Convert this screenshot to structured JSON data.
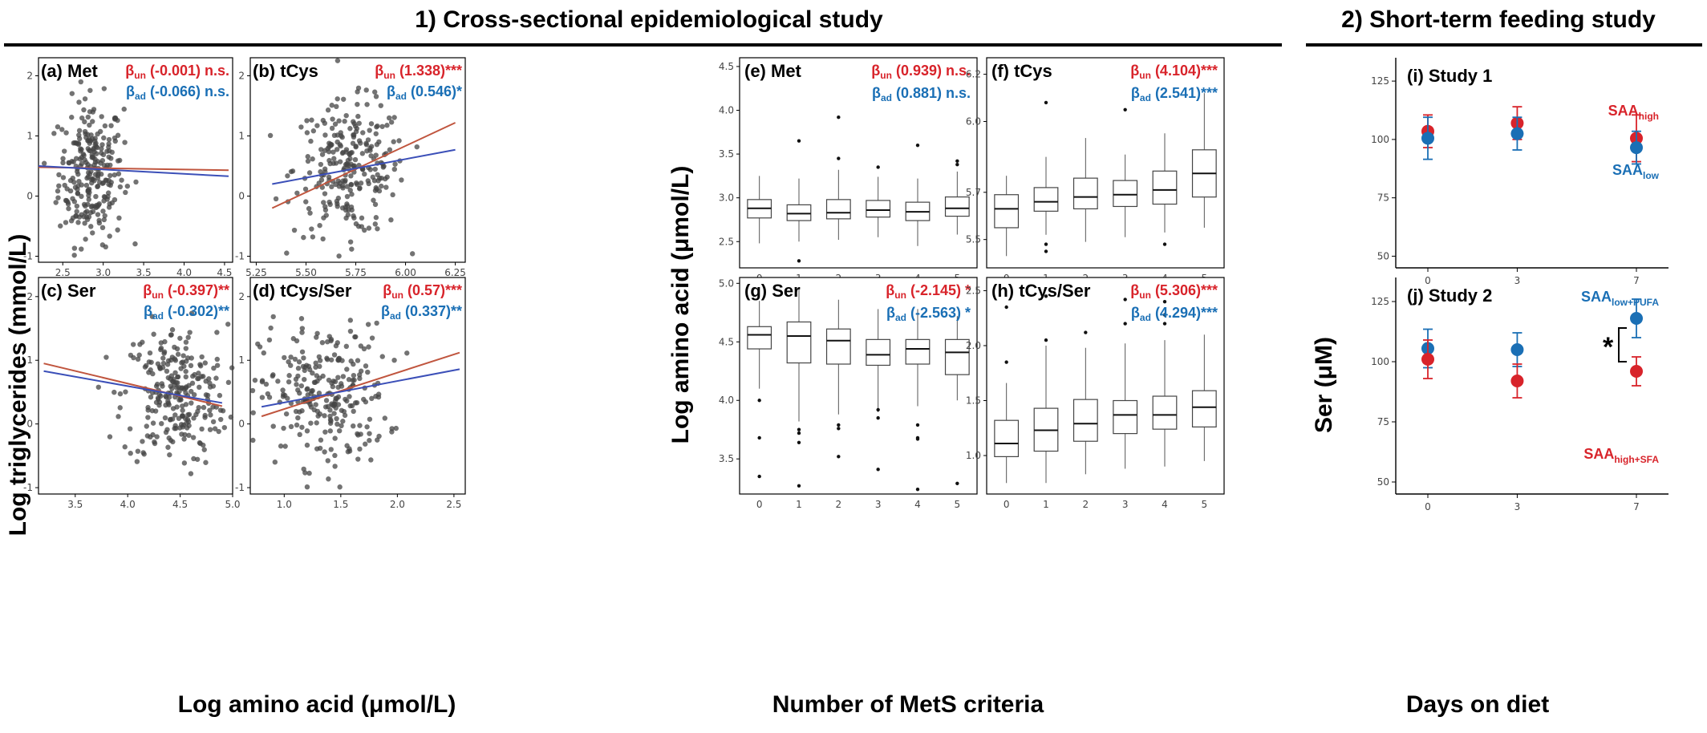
{
  "headers": {
    "cross": "1) Cross-sectional epidemiological study",
    "feeding": "2) Short-term feeding study"
  },
  "axis_titles": {
    "scatter_y": "Log triglycerides (mmol/L)",
    "scatter_x": "Log amino acid (μmol/L)",
    "box_y": "Log amino acid (μmol/L)",
    "box_x": "Number of MetS criteria",
    "feed_y": "Ser (μM)",
    "feed_x": "Days on diet"
  },
  "colors": {
    "red": "#d8232a",
    "blue": "#1a6fb5",
    "point": "#444444",
    "un_line": "#c0553e",
    "ad_line": "#3b4fb8"
  },
  "chart_data": [
    {
      "id": "a",
      "type": "scatter",
      "panel_label": "(a)",
      "title": "Met",
      "xticks": [
        "2.5",
        "3.0",
        "3.5",
        "4.0",
        "4.5"
      ],
      "xlim": [
        2.2,
        4.6
      ],
      "yticks": [
        "-1",
        "0",
        "1",
        "2"
      ],
      "ylim": [
        -1.1,
        2.3
      ],
      "cloud": {
        "cx": 2.85,
        "sx": 0.2,
        "cy": 0.4,
        "sy": 0.6
      },
      "line_un": [
        [
          2.2,
          0.48
        ],
        [
          4.55,
          0.43
        ]
      ],
      "line_ad": [
        [
          2.2,
          0.5
        ],
        [
          4.55,
          0.33
        ]
      ],
      "beta_un_sub": "un",
      "beta_un_val": "(-0.001) n.s.",
      "beta_ad_sub": "ad",
      "beta_ad_val": "(-0.066) n.s."
    },
    {
      "id": "b",
      "type": "scatter",
      "panel_label": "(b)",
      "title": "tCys",
      "xticks": [
        "5.25",
        "5.50",
        "5.75",
        "6.00",
        "6.25"
      ],
      "xlim": [
        5.22,
        6.3
      ],
      "yticks": [
        "-1",
        "0",
        "1",
        "2"
      ],
      "ylim": [
        -1.1,
        2.3
      ],
      "cloud": {
        "cx": 5.72,
        "sx": 0.14,
        "cy": 0.45,
        "sy": 0.55
      },
      "line_un": [
        [
          5.33,
          -0.2
        ],
        [
          6.25,
          1.22
        ]
      ],
      "line_ad": [
        [
          5.33,
          0.2
        ],
        [
          6.25,
          0.77
        ]
      ],
      "beta_un_sub": "un",
      "beta_un_val": "(1.338)***",
      "beta_ad_sub": "ad",
      "beta_ad_val": "(0.546)*"
    },
    {
      "id": "c",
      "type": "scatter",
      "panel_label": "(c)",
      "title": "Ser",
      "xticks": [
        "3.5",
        "4.0",
        "4.5",
        "5.0"
      ],
      "xlim": [
        3.15,
        5.0
      ],
      "yticks": [
        "-1",
        "0",
        "1",
        "2"
      ],
      "ylim": [
        -1.1,
        2.3
      ],
      "cloud": {
        "cx": 4.45,
        "sx": 0.25,
        "cy": 0.45,
        "sy": 0.55
      },
      "line_un": [
        [
          3.2,
          0.95
        ],
        [
          4.9,
          0.28
        ]
      ],
      "line_ad": [
        [
          3.2,
          0.83
        ],
        [
          4.9,
          0.33
        ]
      ],
      "beta_un_sub": "un",
      "beta_un_val": "(-0.397)**",
      "beta_ad_sub": "ad",
      "beta_ad_val": "(-0.302)**"
    },
    {
      "id": "d",
      "type": "scatter",
      "panel_label": "(d)",
      "title": "tCys/Ser",
      "xticks": [
        "1.0",
        "1.5",
        "2.0",
        "2.5"
      ],
      "xlim": [
        0.7,
        2.6
      ],
      "yticks": [
        "-1",
        "0",
        "1",
        "2"
      ],
      "ylim": [
        -1.1,
        2.3
      ],
      "cloud": {
        "cx": 1.35,
        "sx": 0.28,
        "cy": 0.45,
        "sy": 0.55
      },
      "line_un": [
        [
          0.8,
          0.12
        ],
        [
          2.55,
          1.12
        ]
      ],
      "line_ad": [
        [
          0.8,
          0.27
        ],
        [
          2.55,
          0.86
        ]
      ],
      "beta_un_sub": "un",
      "beta_un_val": "(0.57)***",
      "beta_ad_sub": "ad",
      "beta_ad_val": "(0.337)**"
    },
    {
      "id": "e",
      "type": "box",
      "panel_label": "(e)",
      "title": "Met",
      "categories": [
        "0",
        "1",
        "2",
        "3",
        "4",
        "5"
      ],
      "yticks": [
        "2.5",
        "3.0",
        "3.5",
        "4.0",
        "4.5"
      ],
      "ylim": [
        2.2,
        4.6
      ],
      "boxes": [
        {
          "min": 2.48,
          "q1": 2.77,
          "med": 2.88,
          "q3": 2.98,
          "max": 3.25,
          "out": []
        },
        {
          "min": 2.5,
          "q1": 2.74,
          "med": 2.82,
          "q3": 2.92,
          "max": 3.22,
          "out": [
            2.28,
            3.65
          ]
        },
        {
          "min": 2.52,
          "q1": 2.76,
          "med": 2.83,
          "q3": 2.98,
          "max": 3.32,
          "out": [
            3.45,
            3.92
          ]
        },
        {
          "min": 2.55,
          "q1": 2.78,
          "med": 2.86,
          "q3": 2.97,
          "max": 3.24,
          "out": [
            3.35
          ]
        },
        {
          "min": 2.45,
          "q1": 2.74,
          "med": 2.84,
          "q3": 2.95,
          "max": 3.22,
          "out": [
            3.6
          ]
        },
        {
          "min": 2.58,
          "q1": 2.79,
          "med": 2.88,
          "q3": 3.01,
          "max": 3.3,
          "out": [
            3.38,
            3.42
          ]
        }
      ],
      "beta_un_sub": "un",
      "beta_un_val": "(0.939) n.s.",
      "beta_ad_sub": "ad",
      "beta_ad_val": "(0.881) n.s."
    },
    {
      "id": "f",
      "type": "box",
      "panel_label": "(f)",
      "title": "tCys",
      "categories": [
        "0",
        "1",
        "2",
        "3",
        "4",
        "5"
      ],
      "yticks": [
        "5.5",
        "5.7",
        "6.0",
        "6.2"
      ],
      "ylim": [
        5.38,
        6.27
      ],
      "boxes": [
        {
          "min": 5.43,
          "q1": 5.55,
          "med": 5.63,
          "q3": 5.69,
          "max": 5.77,
          "out": []
        },
        {
          "min": 5.52,
          "q1": 5.62,
          "med": 5.66,
          "q3": 5.72,
          "max": 5.85,
          "out": [
            5.45,
            5.48,
            6.08
          ]
        },
        {
          "min": 5.49,
          "q1": 5.63,
          "med": 5.68,
          "q3": 5.76,
          "max": 5.93,
          "out": []
        },
        {
          "min": 5.51,
          "q1": 5.64,
          "med": 5.69,
          "q3": 5.75,
          "max": 5.86,
          "out": [
            6.05
          ]
        },
        {
          "min": 5.53,
          "q1": 5.65,
          "med": 5.71,
          "q3": 5.79,
          "max": 5.95,
          "out": [
            5.48
          ]
        },
        {
          "min": 5.55,
          "q1": 5.68,
          "med": 5.78,
          "q3": 5.88,
          "max": 6.12,
          "out": []
        }
      ],
      "beta_un_sub": "un",
      "beta_un_val": "(4.104)***",
      "beta_ad_sub": "ad",
      "beta_ad_val": "(2.541)***"
    },
    {
      "id": "g",
      "type": "box",
      "panel_label": "(g)",
      "title": "Ser",
      "categories": [
        "0",
        "1",
        "2",
        "3",
        "4",
        "5"
      ],
      "yticks": [
        "3.5",
        "4.0",
        "4.5",
        "5.0"
      ],
      "ylim": [
        3.2,
        5.05
      ],
      "boxes": [
        {
          "min": 4.1,
          "q1": 4.44,
          "med": 4.56,
          "q3": 4.63,
          "max": 4.85,
          "out": [
            4.0,
            3.68,
            3.35
          ]
        },
        {
          "min": 3.82,
          "q1": 4.32,
          "med": 4.55,
          "q3": 4.67,
          "max": 4.95,
          "out": [
            3.75,
            3.72,
            3.64,
            3.27
          ]
        },
        {
          "min": 3.88,
          "q1": 4.31,
          "med": 4.51,
          "q3": 4.61,
          "max": 4.86,
          "out": [
            3.79,
            3.76,
            3.52
          ]
        },
        {
          "min": 3.9,
          "q1": 4.3,
          "med": 4.39,
          "q3": 4.52,
          "max": 4.78,
          "out": [
            3.92,
            3.85,
            3.41
          ]
        },
        {
          "min": 3.95,
          "q1": 4.31,
          "med": 4.44,
          "q3": 4.52,
          "max": 4.78,
          "out": [
            3.79,
            3.68,
            3.67,
            3.24
          ]
        },
        {
          "min": 4.0,
          "q1": 4.22,
          "med": 4.41,
          "q3": 4.52,
          "max": 4.72,
          "out": [
            3.29
          ]
        }
      ],
      "beta_un_sub": "un",
      "beta_un_val": "(-2.145) *",
      "beta_ad_sub": "ad",
      "beta_ad_val": "(-2.563) *"
    },
    {
      "id": "h",
      "type": "box",
      "panel_label": "(h)",
      "title": "tCys/Ser",
      "categories": [
        "0",
        "1",
        "2",
        "3",
        "4",
        "5"
      ],
      "yticks": [
        "1.0",
        "1.5",
        "2.0",
        "2.5"
      ],
      "ylim": [
        0.65,
        2.62
      ],
      "boxes": [
        {
          "min": 0.75,
          "q1": 0.99,
          "med": 1.11,
          "q3": 1.32,
          "max": 1.66,
          "out": [
            1.85,
            2.35
          ]
        },
        {
          "min": 0.75,
          "q1": 1.04,
          "med": 1.23,
          "q3": 1.43,
          "max": 2.0,
          "out": [
            2.05,
            2.45
          ]
        },
        {
          "min": 0.83,
          "q1": 1.13,
          "med": 1.29,
          "q3": 1.51,
          "max": 1.98,
          "out": [
            2.12
          ]
        },
        {
          "min": 0.88,
          "q1": 1.2,
          "med": 1.37,
          "q3": 1.5,
          "max": 2.02,
          "out": [
            2.2,
            2.42
          ]
        },
        {
          "min": 0.9,
          "q1": 1.24,
          "med": 1.37,
          "q3": 1.54,
          "max": 2.05,
          "out": [
            2.2,
            2.28,
            2.4
          ]
        },
        {
          "min": 0.95,
          "q1": 1.26,
          "med": 1.44,
          "q3": 1.59,
          "max": 2.1,
          "out": []
        }
      ],
      "beta_un_sub": "un",
      "beta_un_val": "(5.306)***",
      "beta_ad_sub": "ad",
      "beta_ad_val": "(4.294)***"
    },
    {
      "id": "i",
      "type": "scatter",
      "panel_label": "(i)",
      "title": "Study 1",
      "x": [
        "0",
        "3",
        "7"
      ],
      "yticks": [
        "50",
        "75",
        "100",
        "125"
      ],
      "ylim": [
        45,
        135
      ],
      "series": [
        {
          "name": "SAA",
          "name_sub": "high",
          "color": "#d8232a",
          "values": [
            103.5,
            107,
            100.5
          ],
          "err": [
            7,
            7,
            10
          ]
        },
        {
          "name": "SAA",
          "name_sub": "low",
          "color": "#1a6fb5",
          "values": [
            100.5,
            102.5,
            96.5
          ],
          "err": [
            9,
            7,
            7
          ]
        }
      ]
    },
    {
      "id": "j",
      "type": "scatter",
      "panel_label": "(j)",
      "title": "Study 2",
      "x": [
        "0",
        "3",
        "7"
      ],
      "yticks": [
        "50",
        "75",
        "100",
        "125"
      ],
      "ylim": [
        45,
        135
      ],
      "series": [
        {
          "name": "SAA",
          "name_sub": "low+PUFA",
          "color": "#1a6fb5",
          "values": [
            105.5,
            105,
            118
          ],
          "err": [
            8,
            7,
            8
          ]
        },
        {
          "name": "SAA",
          "name_sub": "high+SFA",
          "color": "#d8232a",
          "values": [
            101,
            92,
            96
          ],
          "err": [
            8,
            7,
            6
          ]
        }
      ],
      "annotation": "*"
    }
  ]
}
